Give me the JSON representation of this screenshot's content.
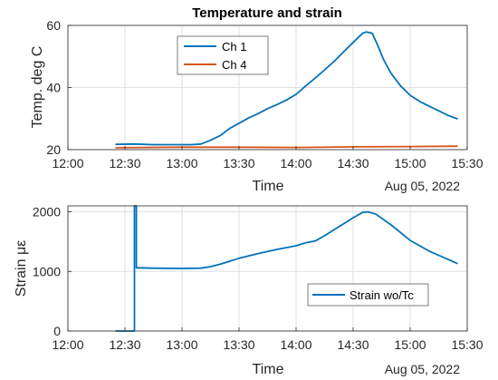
{
  "chart_data": [
    {
      "type": "line",
      "title": "Temperature and strain",
      "xlabel": "Time",
      "ylabel": "Temp. deg C",
      "date_label": "Aug 05, 2022",
      "xlim": [
        "12:00",
        "15:30"
      ],
      "ylim": [
        20,
        60
      ],
      "x_ticks": [
        "12:00",
        "12:30",
        "13:00",
        "13:30",
        "14:00",
        "14:30",
        "15:00",
        "15:30"
      ],
      "y_ticks": [
        "20",
        "40",
        "60"
      ],
      "grid": true,
      "legend_position": "top-left",
      "series": [
        {
          "name": "Ch 1",
          "color": "#0072BD",
          "x": [
            "12:25",
            "12:35",
            "12:45",
            "12:55",
            "13:05",
            "13:10",
            "13:15",
            "13:20",
            "13:25",
            "13:30",
            "13:35",
            "13:40",
            "13:45",
            "13:50",
            "13:55",
            "14:00",
            "14:05",
            "14:10",
            "14:15",
            "14:20",
            "14:25",
            "14:30",
            "14:35",
            "14:37",
            "14:40",
            "14:43",
            "14:46",
            "14:50",
            "14:55",
            "15:00",
            "15:05",
            "15:10",
            "15:15",
            "15:20",
            "15:25"
          ],
          "y": [
            21.7,
            21.8,
            21.6,
            21.6,
            21.6,
            21.8,
            23,
            24.5,
            26.8,
            28.5,
            30.2,
            31.6,
            33.2,
            34.5,
            36,
            37.8,
            40.5,
            43,
            45.7,
            48.4,
            51.5,
            54.5,
            57.5,
            57.9,
            57.5,
            53.5,
            49,
            44.5,
            40.5,
            37.5,
            35.5,
            34,
            32.5,
            31,
            29.9
          ]
        },
        {
          "name": "Ch 4",
          "color": "#D95319",
          "x": [
            "12:25",
            "13:00",
            "13:30",
            "14:00",
            "14:30",
            "15:00",
            "15:25"
          ],
          "y": [
            20.6,
            20.8,
            20.8,
            20.7,
            20.9,
            21.0,
            21.1
          ]
        }
      ]
    },
    {
      "type": "line",
      "title": "",
      "xlabel": "Time",
      "ylabel": "Strain με",
      "date_label": "Aug 05, 2022",
      "xlim": [
        "12:00",
        "15:30"
      ],
      "ylim": [
        0,
        2100
      ],
      "x_ticks": [
        "12:00",
        "12:30",
        "13:00",
        "13:30",
        "14:00",
        "14:30",
        "15:00",
        "15:30"
      ],
      "y_ticks": [
        "0",
        "1000",
        "2000"
      ],
      "grid": true,
      "legend_position": "bottom-right",
      "series": [
        {
          "name": "Strain wo/Tc",
          "color": "#0072BD",
          "x": [
            "12:25",
            "12:31",
            "12:35",
            "12:35",
            "12:36",
            "12:36",
            "12:37",
            "12:45",
            "13:00",
            "13:10",
            "13:15",
            "13:20",
            "13:30",
            "13:40",
            "13:50",
            "14:00",
            "14:05",
            "14:10",
            "14:15",
            "14:20",
            "14:25",
            "14:30",
            "14:35",
            "14:38",
            "14:42",
            "14:50",
            "15:00",
            "15:10",
            "15:20",
            "15:25"
          ],
          "y": [
            0,
            0,
            0,
            2100,
            2100,
            1060,
            1060,
            1055,
            1050,
            1055,
            1080,
            1120,
            1220,
            1300,
            1370,
            1430,
            1480,
            1510,
            1600,
            1700,
            1800,
            1900,
            1990,
            2000,
            1960,
            1780,
            1520,
            1340,
            1200,
            1130
          ]
        }
      ]
    }
  ]
}
